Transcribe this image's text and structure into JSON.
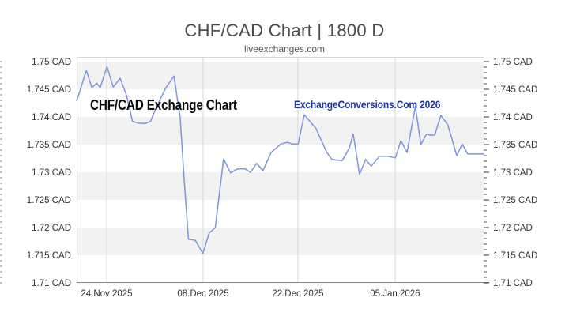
{
  "header": {
    "title": "CHF/CAD Chart | 1800 D",
    "subtitle": "liveexchanges.com"
  },
  "annotations": {
    "watermark_left": "CHF/CAD Exchange Chart",
    "watermark_right": "ExchangeConversions.Com 2026"
  },
  "colors": {
    "line": "#8094d8",
    "band": "#f2f2f2",
    "grid": "#d8d8d8",
    "border": "#d4d4d4",
    "axis": "#888888",
    "tick": "#555555",
    "label": "#333333",
    "title": "#4a4a4a",
    "subtitle": "#555555",
    "watermark_right": "#1c339e"
  },
  "chart_data": {
    "type": "line",
    "title": "CHF/CAD Chart | 1800 D",
    "subtitle": "liveexchanges.com",
    "xlabel": "",
    "ylabel": "",
    "legend_position": "none",
    "grid": {
      "vertical_gridlines": true,
      "alternating_horizontal_bands": true
    },
    "ylim": [
      1.71,
      1.7509
    ],
    "y_tick_step": 0.005,
    "y_ticks": [
      {
        "value": 1.75,
        "label": "1.75 CAD"
      },
      {
        "value": 1.745,
        "label": "1.745 CAD"
      },
      {
        "value": 1.74,
        "label": "1.74 CAD"
      },
      {
        "value": 1.735,
        "label": "1.735 CAD"
      },
      {
        "value": 1.73,
        "label": "1.73 CAD"
      },
      {
        "value": 1.725,
        "label": "1.725 CAD"
      },
      {
        "value": 1.72,
        "label": "1.72 CAD"
      },
      {
        "value": 1.715,
        "label": "1.715 CAD"
      },
      {
        "value": 1.71,
        "label": "1.71 CAD"
      }
    ],
    "x_range_days": [
      0,
      59
    ],
    "x_ticks": [
      {
        "pos": 4.35,
        "label": "24.Nov 2025"
      },
      {
        "pos": 18.33,
        "label": "08.Dec 2025"
      },
      {
        "pos": 32.07,
        "label": "22.Dec 2025"
      },
      {
        "pos": 46.16,
        "label": "05.Jan 2026"
      }
    ],
    "series": [
      {
        "name": "CHF/CAD",
        "unit": "CAD",
        "points": [
          [
            0,
            1.743
          ],
          [
            0.3,
            1.744
          ],
          [
            1.4,
            1.7484
          ],
          [
            2.2,
            1.7453
          ],
          [
            2.9,
            1.7461
          ],
          [
            3.4,
            1.7453
          ],
          [
            4.4,
            1.7491
          ],
          [
            5.3,
            1.7454
          ],
          [
            6.3,
            1.747
          ],
          [
            7.2,
            1.744
          ],
          [
            8.1,
            1.7392
          ],
          [
            8.9,
            1.7389
          ],
          [
            9.9,
            1.7388
          ],
          [
            10.7,
            1.7392
          ],
          [
            11.8,
            1.7424
          ],
          [
            12.9,
            1.7452
          ],
          [
            14.1,
            1.7474
          ],
          [
            15.0,
            1.74
          ],
          [
            15.6,
            1.7283
          ],
          [
            16.2,
            1.7179
          ],
          [
            17.2,
            1.7177
          ],
          [
            18.3,
            1.7153
          ],
          [
            19.2,
            1.719
          ],
          [
            20.1,
            1.72
          ],
          [
            21.3,
            1.7324
          ],
          [
            22.3,
            1.7299
          ],
          [
            23.3,
            1.7306
          ],
          [
            24.4,
            1.7306
          ],
          [
            25.2,
            1.73
          ],
          [
            26.1,
            1.7316
          ],
          [
            27.0,
            1.7303
          ],
          [
            28.2,
            1.7336
          ],
          [
            29.6,
            1.7351
          ],
          [
            30.5,
            1.7354
          ],
          [
            31.3,
            1.7351
          ],
          [
            32.1,
            1.7351
          ],
          [
            33.0,
            1.7404
          ],
          [
            34.7,
            1.7379
          ],
          [
            36.2,
            1.7337
          ],
          [
            37.0,
            1.7323
          ],
          [
            38.5,
            1.7321
          ],
          [
            39.5,
            1.7343
          ],
          [
            40.1,
            1.7369
          ],
          [
            41.0,
            1.7296
          ],
          [
            41.9,
            1.7323
          ],
          [
            42.7,
            1.7311
          ],
          [
            43.9,
            1.7329
          ],
          [
            45.0,
            1.7329
          ],
          [
            46.2,
            1.7326
          ],
          [
            47.0,
            1.7357
          ],
          [
            47.9,
            1.7336
          ],
          [
            49.1,
            1.7419
          ],
          [
            49.9,
            1.735
          ],
          [
            50.7,
            1.7369
          ],
          [
            51.3,
            1.7367
          ],
          [
            51.9,
            1.7367
          ],
          [
            52.8,
            1.7403
          ],
          [
            53.8,
            1.7386
          ],
          [
            55.1,
            1.733
          ],
          [
            55.9,
            1.7351
          ],
          [
            56.7,
            1.7333
          ],
          [
            57.6,
            1.7333
          ],
          [
            59.0,
            1.7333
          ]
        ]
      }
    ]
  }
}
